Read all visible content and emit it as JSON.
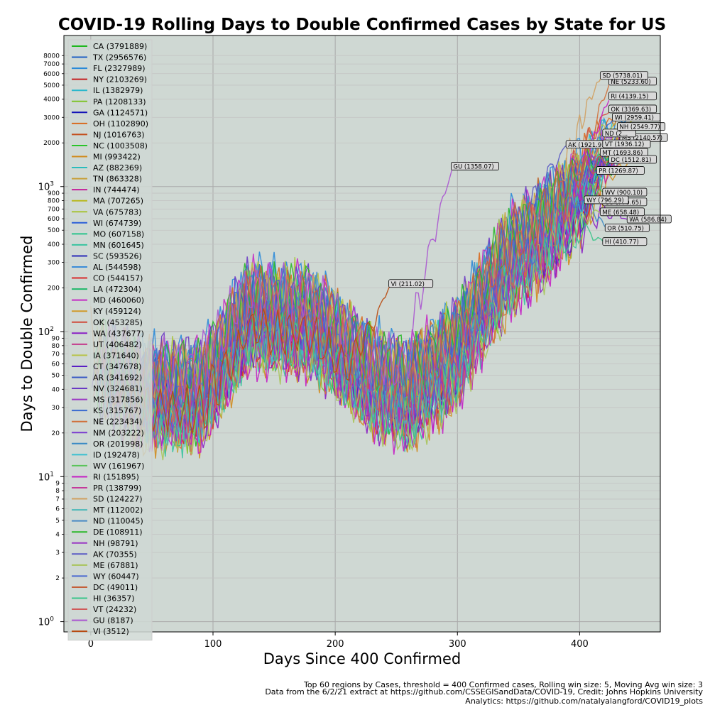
{
  "chart_data": {
    "type": "line",
    "title": "COVID-19 Rolling Days to Double Confirmed Cases by State for US",
    "xlabel": "Days Since 400 Confirmed",
    "ylabel": "Days to Double Confirmed",
    "xlim": [
      -22,
      466
    ],
    "ylim": [
      0.85,
      11000
    ],
    "y_scale": "log",
    "grid": true,
    "legend_placement": "top-left",
    "x_ticks": [
      "0",
      "100",
      "200",
      "300",
      "400"
    ],
    "y_major_ticks": [
      "10^0",
      "10^1",
      "10^2",
      "10^3"
    ],
    "y_minor_ticks": [
      "2",
      "3",
      "4",
      "5",
      "6",
      "7",
      "8",
      "9",
      "20",
      "30",
      "40",
      "50",
      "60",
      "70",
      "80",
      "90",
      "200",
      "300",
      "400",
      "500",
      "600",
      "700",
      "800",
      "900",
      "2000",
      "3000",
      "4000",
      "5000",
      "6000",
      "7000",
      "8000"
    ],
    "series": [
      {
        "name": "CA (3791889)",
        "color": "#1fb81f",
        "days": 438,
        "end": 1620
      },
      {
        "name": "TX (2956576)",
        "color": "#1f5fc4",
        "days": 440,
        "end": 2400
      },
      {
        "name": "FL (2327989)",
        "color": "#2a8ad8",
        "days": 440,
        "end": 2900
      },
      {
        "name": "NY (2103269)",
        "color": "#c41f1f",
        "days": 443,
        "end": 2050
      },
      {
        "name": "IL (1382979)",
        "color": "#2ab8cc",
        "days": 437,
        "end": 3400
      },
      {
        "name": "PA (1208133)",
        "color": "#7fc42a",
        "days": 435,
        "end": 2300
      },
      {
        "name": "GA (1124571)",
        "color": "#1414b8",
        "days": 440,
        "end": 1900
      },
      {
        "name": "OH (1102890)",
        "color": "#d86a1f",
        "days": 435,
        "end": 3100
      },
      {
        "name": "NJ (1016763)",
        "color": "#c4501f",
        "days": 445,
        "end": 2700
      },
      {
        "name": "NC (1003508)",
        "color": "#2ac42a",
        "days": 440,
        "end": 1700
      },
      {
        "name": "MI (993422)",
        "color": "#d08c1f",
        "days": 440,
        "end": 1450
      },
      {
        "name": "AZ (882369)",
        "color": "#2abcbc",
        "days": 430,
        "end": 1800
      },
      {
        "name": "TN (863328)",
        "color": "#c8a03a",
        "days": 432,
        "end": 1500
      },
      {
        "name": "IN (744474)",
        "color": "#c41f9a",
        "days": 436,
        "end": 1550
      },
      {
        "name": "MA (707265)",
        "color": "#b8b81f",
        "days": 445,
        "end": 2950
      },
      {
        "name": "VA (675783)",
        "color": "#a8c43a",
        "days": 433,
        "end": 1650
      },
      {
        "name": "WI (674739)",
        "color": "#2a5fd8",
        "days": 428,
        "end": 2959.41,
        "label": "WI (2959.41)"
      },
      {
        "name": "MO (607158)",
        "color": "#2ac48c",
        "days": 432,
        "end": 1400
      },
      {
        "name": "MN (601645)",
        "color": "#3ac4a0",
        "days": 434,
        "end": 1750
      },
      {
        "name": "SC (593526)",
        "color": "#2a2ab8",
        "days": 431,
        "end": 1850
      },
      {
        "name": "AL (544598)",
        "color": "#3a8cd8",
        "days": 427,
        "end": 1600
      },
      {
        "name": "CO (544157)",
        "color": "#d82a2a",
        "days": 420,
        "end": 770.65,
        "label": "CO (770.65)"
      },
      {
        "name": "LA (472304)",
        "color": "#1fb86a",
        "days": 426,
        "end": 1350
      },
      {
        "name": "MD (460060)",
        "color": "#c42ac4",
        "days": 442,
        "end": 2150
      },
      {
        "name": "KY (459124)",
        "color": "#d09a2a",
        "days": 425,
        "end": 1250
      },
      {
        "name": "OK (453285)",
        "color": "#d04a3a",
        "days": 425,
        "end": 3369.63,
        "label": "OK (3369.63)"
      },
      {
        "name": "WA (437677)",
        "color": "#8a1fc4",
        "days": 440,
        "end": 586.84,
        "label": "WA (586.84)"
      },
      {
        "name": "UT (406482)",
        "color": "#c43a8c",
        "days": 430,
        "end": 1450
      },
      {
        "name": "IA (371640)",
        "color": "#b8c44a",
        "days": 430,
        "end": 2700
      },
      {
        "name": "CT (347678)",
        "color": "#5a1fc4",
        "days": 442,
        "end": 2400
      },
      {
        "name": "AR (341692)",
        "color": "#3a5ac4",
        "days": 430,
        "end": 1500
      },
      {
        "name": "NV (324681)",
        "color": "#6a3ac4",
        "days": 428,
        "end": 1300
      },
      {
        "name": "MS (317856)",
        "color": "#9a3ac4",
        "days": 434,
        "end": 2140.57,
        "label": "MS (2140.57)"
      },
      {
        "name": "KS (315767)",
        "color": "#3a6ad0",
        "days": 420,
        "end": 1550
      },
      {
        "name": "NE (223434)",
        "color": "#d0703a",
        "days": 425,
        "end": 5233.6,
        "label": "NE (5233.60)"
      },
      {
        "name": "NM (203222)",
        "color": "#7a3ad0",
        "days": 440,
        "end": 1700
      },
      {
        "name": "OR (201998)",
        "color": "#3a8ac4",
        "days": 422,
        "end": 510.75,
        "label": "OR (510.75)"
      },
      {
        "name": "ID (192478)",
        "color": "#3ac0d0",
        "days": 428,
        "end": 1350
      },
      {
        "name": "WV (161967)",
        "color": "#5ac45a",
        "days": 420,
        "end": 900.1,
        "label": "WV (900.10)"
      },
      {
        "name": "RI (151895)",
        "color": "#c41fc4",
        "days": 425,
        "end": 4139.15,
        "label": "RI (4139.15)"
      },
      {
        "name": "PR (138799)",
        "color": "#c43a9a",
        "days": 415,
        "end": 1269.87,
        "label": "PR (1269.87)"
      },
      {
        "name": "SD (124227)",
        "color": "#d0a060",
        "days": 418,
        "end": 5738.01,
        "label": "SD (5738.01)"
      },
      {
        "name": "MT (112002)",
        "color": "#4ab8b8",
        "days": 418,
        "end": 1693.86,
        "label": "MT (1693.86)"
      },
      {
        "name": "ND (110045)",
        "color": "#4a8ac4",
        "days": 420,
        "end": 2300,
        "label": "ND (2..."
      },
      {
        "name": "DE (108911)",
        "color": "#2ab82a",
        "days": 425,
        "end": 1500
      },
      {
        "name": "NH (98791)",
        "color": "#9a3ac4",
        "days": 432,
        "end": 2549.77,
        "label": "NH (2549.77)"
      },
      {
        "name": "AK (70355)",
        "color": "#5a5ac4",
        "days": 390,
        "end": 1921.93,
        "label": "AK (1921.93)"
      },
      {
        "name": "ME (67881)",
        "color": "#a8c45a",
        "days": 418,
        "end": 658.48,
        "label": "ME (658.48)"
      },
      {
        "name": "WY (60447)",
        "color": "#4a6ad0",
        "days": 405,
        "end": 796.29,
        "label": "WY (796.29)"
      },
      {
        "name": "DC (49011)",
        "color": "#c4603a",
        "days": 425,
        "end": 1512.81,
        "label": "DC (1512.81)"
      },
      {
        "name": "HI (36357)",
        "color": "#3ac48a",
        "days": 420,
        "end": 410.77,
        "label": "HI (410.77)"
      },
      {
        "name": "VT (24232)",
        "color": "#d05a5a",
        "days": 420,
        "end": 1936.12,
        "label": "VT (1936.12)"
      },
      {
        "name": "GU (8187)",
        "color": "#aa55d0",
        "days": 296,
        "end": 1358.07,
        "label": "GU (1358.07)"
      },
      {
        "name": "VI (3512)",
        "color": "#b84a10",
        "days": 245,
        "end": 211.02,
        "label": "VI (211.02)"
      }
    ]
  },
  "footnotes": {
    "line1": "Top 60 regions by Cases, threshold = 400 Confirmed cases, Rolling win size: 5, Moving Avg win size: 3",
    "line2": "Data from the 6/2/21 extract at https://github.com/CSSEGISandData/COVID-19, Credit: Johns Hopkins University",
    "line3": "Analytics: https://github.com/natalyalangford/COVID19_plots"
  }
}
